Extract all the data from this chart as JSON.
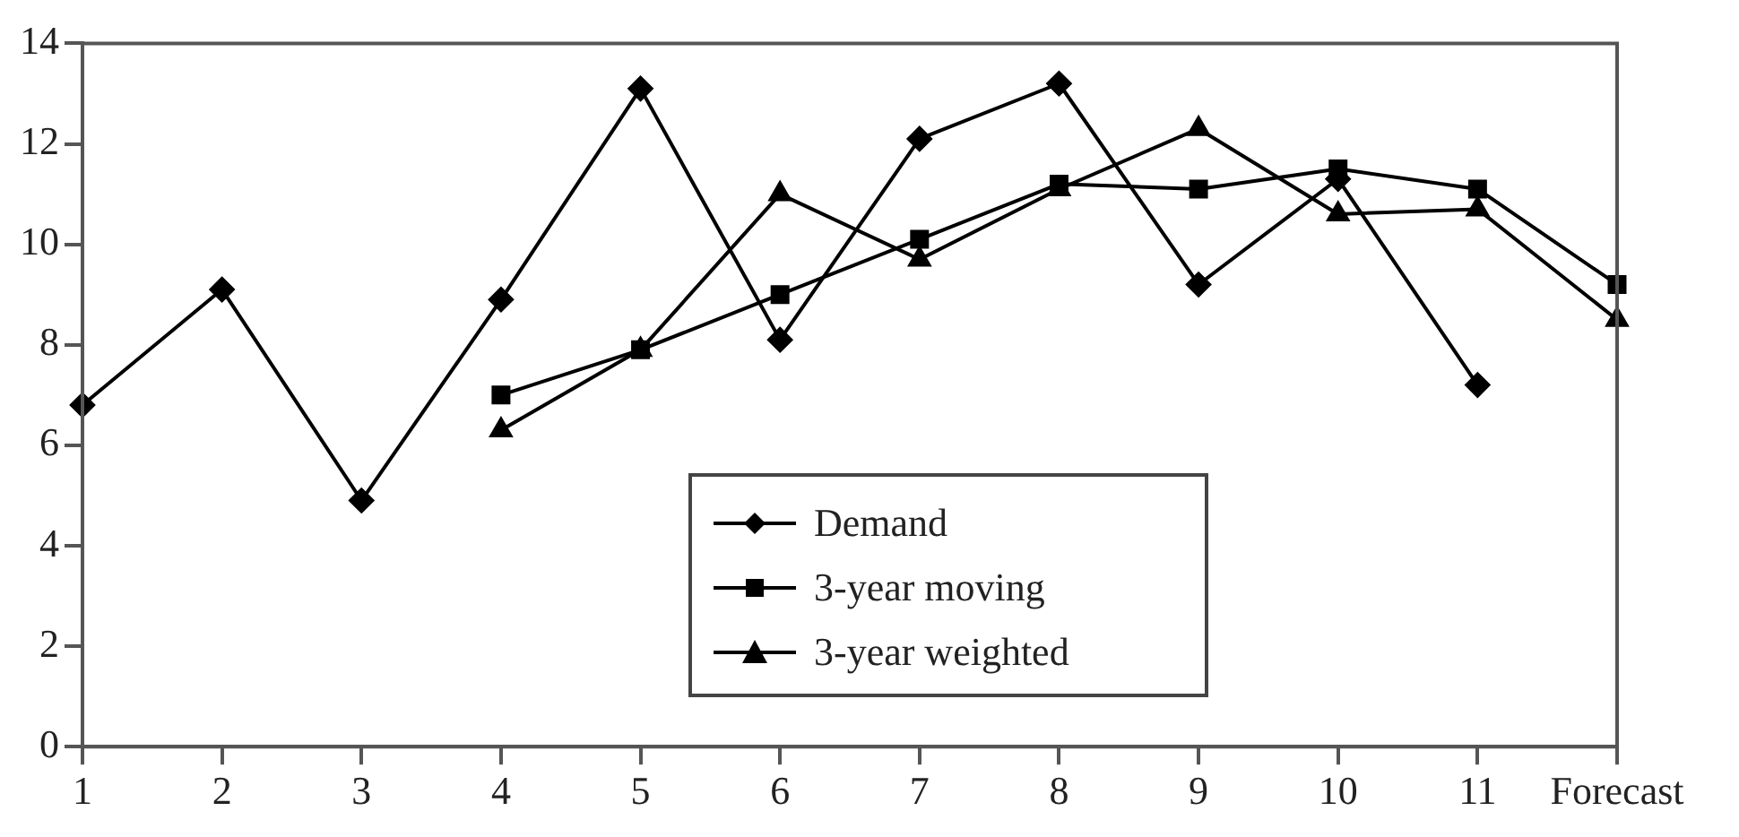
{
  "chart_data": {
    "type": "line",
    "categories": [
      "1",
      "2",
      "3",
      "4",
      "5",
      "6",
      "7",
      "8",
      "9",
      "10",
      "11",
      "Forecast"
    ],
    "ylim": [
      0,
      14
    ],
    "yticks": [
      0,
      2,
      4,
      6,
      8,
      10,
      12,
      14
    ],
    "grid": false,
    "legend": "bottom",
    "line_style": "solid",
    "series": [
      {
        "name": "Demand",
        "color": "#000000",
        "marker": "diamond",
        "values": [
          6.8,
          9.1,
          4.9,
          8.9,
          13.1,
          8.1,
          12.1,
          13.2,
          9.2,
          11.3,
          7.2,
          null
        ]
      },
      {
        "name": "3-year moving",
        "color": "#000000",
        "marker": "square",
        "values": [
          null,
          null,
          null,
          7.0,
          7.9,
          9.0,
          10.1,
          11.2,
          11.1,
          11.5,
          11.1,
          9.2
        ]
      },
      {
        "name": "3-year weighted",
        "color": "#000000",
        "marker": "triangle",
        "values": [
          null,
          null,
          null,
          6.3,
          7.9,
          11.0,
          9.7,
          11.1,
          12.3,
          10.6,
          10.7,
          8.5
        ]
      }
    ]
  }
}
